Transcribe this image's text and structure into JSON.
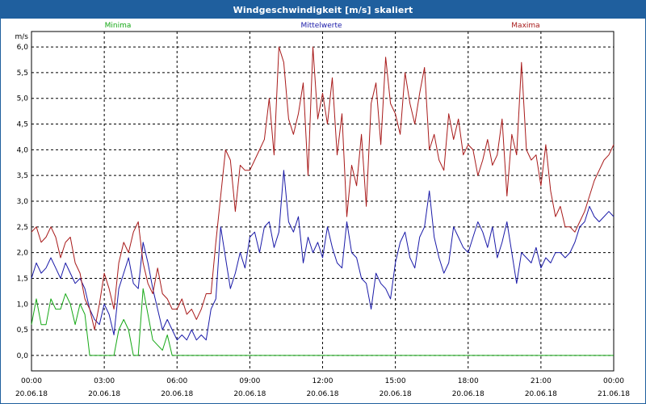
{
  "window": {
    "title": "Windgeschwindigkeit [m/s] skaliert"
  },
  "colors": {
    "titlebar": "#1f5f9e",
    "minima": "#15a815",
    "mittelwerte": "#1a1aa8",
    "maxima": "#a81a1a",
    "grid": "#000000"
  },
  "chart_data": {
    "type": "line",
    "title": "Windgeschwindigkeit [m/s] skaliert",
    "ylabel": "m/s",
    "xlabel": "",
    "ylim": [
      -0.3,
      6.3
    ],
    "xlim": [
      0,
      24
    ],
    "grid": true,
    "legend_placement": "top",
    "y_ticks": [
      "0,0",
      "0,5",
      "1,0",
      "1,5",
      "2,0",
      "2,5",
      "3,0",
      "3,5",
      "4,0",
      "4,5",
      "5,0",
      "5,5",
      "6,0"
    ],
    "x_ticks": [
      {
        "time": "00:00",
        "date": "20.06.18"
      },
      {
        "time": "03:00",
        "date": "20.06.18"
      },
      {
        "time": "06:00",
        "date": "20.06.18"
      },
      {
        "time": "09:00",
        "date": "20.06.18"
      },
      {
        "time": "12:00",
        "date": "20.06.18"
      },
      {
        "time": "15:00",
        "date": "20.06.18"
      },
      {
        "time": "18:00",
        "date": "20.06.18"
      },
      {
        "time": "21:00",
        "date": "20.06.18"
      },
      {
        "time": "00:00",
        "date": "21.06.18"
      }
    ],
    "x_hours": [
      0,
      0.2,
      0.4,
      0.6,
      0.8,
      1,
      1.2,
      1.4,
      1.6,
      1.8,
      2,
      2.2,
      2.4,
      2.6,
      2.8,
      3,
      3.2,
      3.4,
      3.6,
      3.8,
      4,
      4.2,
      4.4,
      4.6,
      4.8,
      5,
      5.2,
      5.4,
      5.6,
      5.8,
      6,
      6.2,
      6.4,
      6.6,
      6.8,
      7,
      7.2,
      7.4,
      7.6,
      7.8,
      8,
      8.2,
      8.4,
      8.6,
      8.8,
      9,
      9.2,
      9.4,
      9.6,
      9.8,
      10,
      10.2,
      10.4,
      10.6,
      10.8,
      11,
      11.2,
      11.4,
      11.6,
      11.8,
      12,
      12.2,
      12.4,
      12.6,
      12.8,
      13,
      13.2,
      13.4,
      13.6,
      13.8,
      14,
      14.2,
      14.4,
      14.6,
      14.8,
      15,
      15.2,
      15.4,
      15.6,
      15.8,
      16,
      16.2,
      16.4,
      16.6,
      16.8,
      17,
      17.2,
      17.4,
      17.6,
      17.8,
      18,
      18.2,
      18.4,
      18.6,
      18.8,
      19,
      19.2,
      19.4,
      19.6,
      19.8,
      20,
      20.2,
      20.4,
      20.6,
      20.8,
      21,
      21.2,
      21.4,
      21.6,
      21.8,
      22,
      22.2,
      22.4,
      22.6,
      22.8,
      23,
      23.2,
      23.4,
      23.6,
      23.8,
      24
    ],
    "series": [
      {
        "name": "Minima",
        "color": "#15a815",
        "values": [
          0.6,
          1.1,
          0.6,
          0.6,
          1.1,
          0.9,
          0.9,
          1.2,
          1.0,
          0.6,
          1.0,
          0.8,
          0.0,
          0.0,
          0.0,
          0.0,
          0.0,
          0.0,
          0.5,
          0.7,
          0.5,
          0.0,
          0.0,
          1.3,
          0.8,
          0.3,
          0.2,
          0.1,
          0.4,
          0.0,
          0.0,
          0.0,
          0.0,
          0.0,
          0.0,
          0.0,
          0.0,
          0.0,
          0.0,
          0.0,
          0.0,
          0.0,
          0.0,
          0.0,
          0.0,
          0.0,
          0.0,
          0.0,
          0.0,
          0.0,
          0.0,
          0.0,
          0.0,
          0.0,
          0.0,
          0.0,
          0.0,
          0.0,
          0.0,
          0.0,
          0.0,
          0.0,
          0.0,
          0.0,
          0.0,
          0.0,
          0.0,
          0.0,
          0.0,
          0.0,
          0.0,
          0.0,
          0.0,
          0.0,
          0.0,
          0.0,
          0.0,
          0.0,
          0.0,
          0.0,
          0.0,
          0.0,
          0.0,
          0.0,
          0.0,
          0.0,
          0.0,
          0.0,
          0.0,
          0.0,
          0.0,
          0.0,
          0.0,
          0.0,
          0.0,
          0.0,
          0.0,
          0.0,
          0.0,
          0.0,
          0.0,
          0.0,
          0.0,
          0.0,
          0.0,
          0.0,
          0.0,
          0.0,
          0.0,
          0.0,
          0.0,
          0.0,
          0.0,
          0.0,
          0.0,
          0.0,
          0.0,
          0.0,
          0.0,
          0.0,
          0.0
        ]
      },
      {
        "name": "Mittelwerte",
        "color": "#1a1aa8",
        "values": [
          1.5,
          1.8,
          1.6,
          1.7,
          1.9,
          1.7,
          1.5,
          1.8,
          1.6,
          1.4,
          1.5,
          1.3,
          0.9,
          0.7,
          0.6,
          1.0,
          0.8,
          0.4,
          1.3,
          1.6,
          1.9,
          1.4,
          1.3,
          2.2,
          1.8,
          1.3,
          0.9,
          0.5,
          0.7,
          0.5,
          0.3,
          0.4,
          0.3,
          0.5,
          0.3,
          0.4,
          0.3,
          0.9,
          1.1,
          2.5,
          1.9,
          1.3,
          1.6,
          2.0,
          1.7,
          2.3,
          2.4,
          2.0,
          2.5,
          2.6,
          2.1,
          2.4,
          3.6,
          2.6,
          2.4,
          2.7,
          1.8,
          2.3,
          2.0,
          2.2,
          1.9,
          2.5,
          2.1,
          1.8,
          1.7,
          2.6,
          2.0,
          1.9,
          1.5,
          1.4,
          0.9,
          1.6,
          1.4,
          1.3,
          1.1,
          1.8,
          2.2,
          2.4,
          1.9,
          1.7,
          2.3,
          2.5,
          3.2,
          2.3,
          1.9,
          1.6,
          1.8,
          2.5,
          2.3,
          2.1,
          2.0,
          2.3,
          2.6,
          2.4,
          2.1,
          2.5,
          1.9,
          2.2,
          2.6,
          2.0,
          1.4,
          2.0,
          1.9,
          1.8,
          2.1,
          1.7,
          1.9,
          1.8,
          2.0,
          2.0,
          1.9,
          2.0,
          2.2,
          2.5,
          2.6,
          2.9,
          2.7,
          2.6,
          2.7,
          2.8,
          2.7
        ]
      },
      {
        "name": "Maxima",
        "color": "#a81a1a",
        "values": [
          2.4,
          2.5,
          2.2,
          2.3,
          2.5,
          2.3,
          1.9,
          2.2,
          2.3,
          1.8,
          1.6,
          1.1,
          0.9,
          0.5,
          1.0,
          1.6,
          1.3,
          0.9,
          1.8,
          2.2,
          2.0,
          2.4,
          2.6,
          1.8,
          1.4,
          1.2,
          1.7,
          1.2,
          1.1,
          0.9,
          0.9,
          1.1,
          0.8,
          0.9,
          0.7,
          0.9,
          1.2,
          1.2,
          2.2,
          3.1,
          4.0,
          3.8,
          2.8,
          3.7,
          3.6,
          3.6,
          3.8,
          4.0,
          4.2,
          5.0,
          3.9,
          6.0,
          5.7,
          4.6,
          4.3,
          4.7,
          5.3,
          3.5,
          6.0,
          4.6,
          5.1,
          4.5,
          5.4,
          3.9,
          4.7,
          2.7,
          3.7,
          3.3,
          4.3,
          2.9,
          4.9,
          5.3,
          4.1,
          5.8,
          4.9,
          4.7,
          4.3,
          5.5,
          4.9,
          4.5,
          5.1,
          5.6,
          4.0,
          4.3,
          3.8,
          3.6,
          4.7,
          4.2,
          4.6,
          3.9,
          4.1,
          4.0,
          3.5,
          3.8,
          4.2,
          3.7,
          3.9,
          4.6,
          3.1,
          4.3,
          3.9,
          5.7,
          4.0,
          3.8,
          3.9,
          3.3,
          4.1,
          3.2,
          2.7,
          2.9,
          2.5,
          2.5,
          2.4,
          2.6,
          2.8,
          3.1,
          3.4,
          3.6,
          3.8,
          3.9,
          4.1
        ]
      }
    ]
  }
}
